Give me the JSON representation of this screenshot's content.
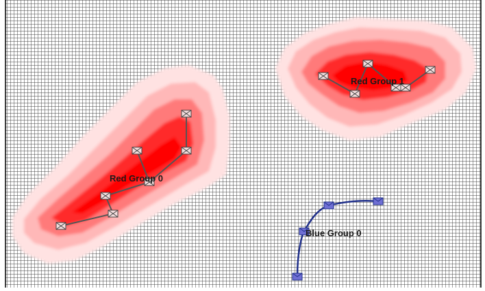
{
  "colors": {
    "grid_line": "#404040",
    "grid_background": "#ffffff",
    "red_group_core": "#ff0000",
    "red_group_edge": "#ffe4e4",
    "red_link": "#555555",
    "red_unit_fill": "#f4dede",
    "blue_link": "#1f2f8a",
    "blue_unit_fill": "#6f6fd4",
    "label_text": "#1a1a1a"
  },
  "icons": {
    "red_unit": "envelope-unit-icon",
    "blue_unit": "blue-unit-icon"
  },
  "groups": [
    {
      "id": "red-group-0",
      "label": "Red Group 0",
      "team": "red"
    },
    {
      "id": "red-group-1",
      "label": "Red Group 1",
      "team": "red"
    },
    {
      "id": "blue-group-0",
      "label": "Blue Group 0",
      "team": "blue"
    }
  ]
}
